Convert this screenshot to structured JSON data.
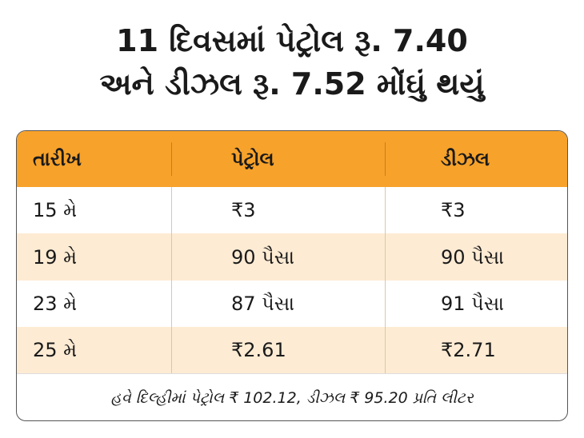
{
  "title": {
    "lines": [
      "11 દિવસમાં પેટ્રોલ રૂ. 7.40",
      "અને ડીઝલ રૂ. 7.52 મોંઘું થયું"
    ]
  },
  "table": {
    "header": [
      "તારીખ",
      "પેટ્રોલ",
      "ડીઝલ"
    ],
    "rows": [
      [
        "15 મે",
        "₹3",
        "₹3"
      ],
      [
        "19 મે",
        "90 પૈસા",
        "90 પૈસા"
      ],
      [
        "23 મે",
        "87 પૈસા",
        "91 પૈસા"
      ],
      [
        "25 મે",
        "₹2.61",
        "₹2.71"
      ]
    ],
    "footer": "હવે દિલ્હીમાં પેટ્રોલ ₹ 102.12, ડીઝલ ₹ 95.20 પ્રતિ લીટર"
  }
}
